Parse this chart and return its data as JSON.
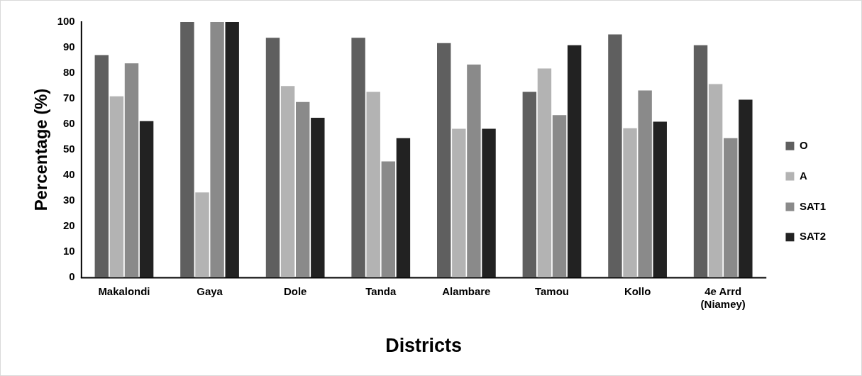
{
  "chart_data": {
    "type": "bar",
    "xlabel": "Districts",
    "ylabel": "Percentage (%)",
    "categories": [
      "Makalondi",
      "Gaya",
      "Dole",
      "Tanda",
      "Alambare",
      "Tamou",
      "Kollo",
      "4e Arrd\n(Niamey)"
    ],
    "series": [
      {
        "name": "O",
        "color": "#5f5f5f",
        "values": [
          87,
          100,
          93.8,
          93.8,
          91.7,
          72.6,
          95.1,
          90.9
        ]
      },
      {
        "name": "A",
        "color": "#b3b3b3",
        "values": [
          70.9,
          33.3,
          74.9,
          72.6,
          58.2,
          81.8,
          58.4,
          75.7
        ]
      },
      {
        "name": "SAT1",
        "color": "#8a8a8a",
        "values": [
          83.8,
          100,
          68.7,
          45.4,
          83.3,
          63.5,
          73.2,
          54.5
        ]
      },
      {
        "name": "SAT2",
        "color": "#222222",
        "values": [
          61.2,
          100,
          62.5,
          54.5,
          58.2,
          90.9,
          61,
          69.6
        ]
      }
    ],
    "ylim": [
      0,
      100
    ],
    "yticks": [
      0,
      10,
      20,
      30,
      40,
      50,
      60,
      70,
      80,
      90,
      100
    ],
    "grid": false,
    "legend": "right"
  }
}
